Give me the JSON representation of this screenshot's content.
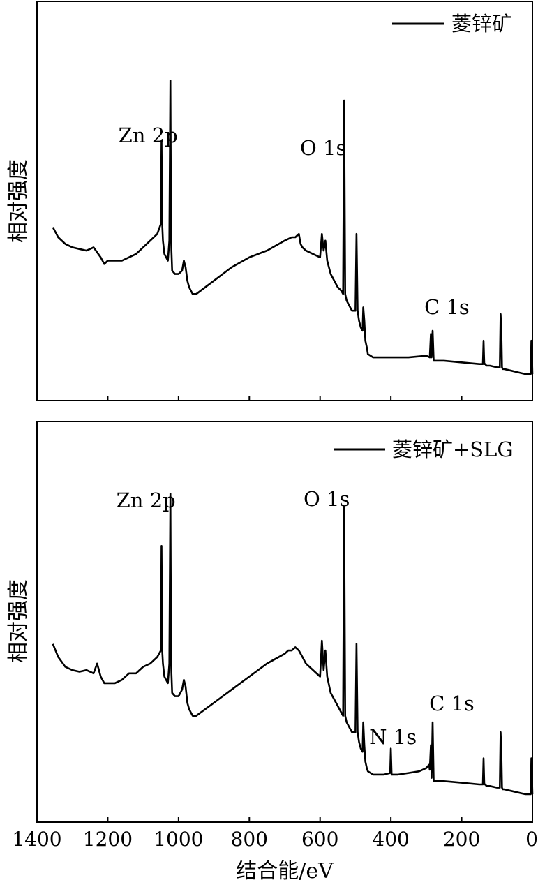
{
  "figure": {
    "xlabel": "结合能/eV",
    "x_ticks": [
      1400,
      1200,
      1000,
      800,
      600,
      400,
      200,
      0
    ]
  },
  "chart_data": [
    {
      "type": "line",
      "title": "",
      "xlabel": "",
      "ylabel": "相对强度",
      "xlim": [
        1400,
        0
      ],
      "x_reversed": true,
      "y_ticks_shown": false,
      "legend": "top-right",
      "series": [
        {
          "name": "菱锌矿",
          "x": [
            1355,
            1340,
            1320,
            1300,
            1280,
            1260,
            1240,
            1220,
            1210,
            1200,
            1180,
            1160,
            1140,
            1120,
            1100,
            1080,
            1060,
            1050,
            1048,
            1046,
            1044,
            1040,
            1030,
            1026,
            1023,
            1021,
            1018,
            1010,
            1000,
            990,
            985,
            980,
            975,
            970,
            960,
            950,
            900,
            850,
            800,
            750,
            700,
            680,
            670,
            660,
            655,
            650,
            640,
            620,
            600,
            595,
            590,
            585,
            580,
            570,
            560,
            550,
            540,
            535,
            532,
            529,
            525,
            520,
            510,
            500,
            497,
            494,
            490,
            485,
            480,
            478,
            475,
            472,
            468,
            465,
            450,
            400,
            350,
            300,
            290,
            287,
            285,
            282,
            279,
            275,
            270,
            250,
            200,
            150,
            140,
            138,
            136,
            133,
            130,
            120,
            100,
            92,
            90,
            88,
            86,
            84,
            80,
            60,
            40,
            20,
            10,
            5,
            3,
            1,
            0
          ],
          "y": [
            44,
            41,
            39,
            38,
            37.5,
            37,
            38,
            35,
            33,
            34,
            34,
            34,
            35,
            36,
            38,
            40,
            42,
            45,
            70,
            45,
            40,
            36,
            34,
            40,
            88,
            40,
            31,
            30,
            30,
            31,
            34,
            32,
            28,
            26,
            24,
            24,
            28,
            32,
            35,
            37,
            40,
            41,
            41,
            42,
            39,
            38,
            37,
            36,
            35,
            42,
            37,
            40,
            34,
            30,
            28,
            26,
            25,
            24,
            82,
            24,
            22,
            21,
            19,
            19,
            42,
            19,
            16,
            14,
            13,
            20,
            16,
            10,
            8,
            6,
            5,
            5,
            5,
            5.5,
            5,
            12,
            5,
            13,
            4,
            4,
            4,
            4,
            3.5,
            3,
            3,
            10,
            3,
            3,
            2.5,
            2.5,
            2,
            2,
            18,
            14,
            2,
            1.5,
            1.5,
            1,
            0.5,
            0,
            0,
            0,
            10,
            4,
            0
          ]
        }
      ],
      "annotations": [
        {
          "text": "Zn 2p",
          "x": 1023
        },
        {
          "text": "O 1s",
          "x": 532
        },
        {
          "text": "C 1s",
          "x": 285
        }
      ]
    },
    {
      "type": "line",
      "title": "",
      "xlabel": "结合能/eV",
      "ylabel": "相对强度",
      "xlim": [
        1400,
        0
      ],
      "x_reversed": true,
      "y_ticks_shown": false,
      "legend": "top-right",
      "series": [
        {
          "name": "菱锌矿+SLG",
          "x": [
            1355,
            1340,
            1320,
            1300,
            1280,
            1260,
            1240,
            1230,
            1220,
            1210,
            1200,
            1180,
            1160,
            1140,
            1120,
            1100,
            1080,
            1060,
            1050,
            1048,
            1046,
            1044,
            1040,
            1030,
            1026,
            1023,
            1021,
            1018,
            1010,
            1000,
            990,
            985,
            980,
            975,
            970,
            960,
            950,
            900,
            850,
            800,
            750,
            700,
            690,
            680,
            670,
            660,
            650,
            640,
            620,
            600,
            595,
            590,
            585,
            580,
            570,
            560,
            550,
            540,
            535,
            532,
            529,
            525,
            520,
            510,
            500,
            497,
            494,
            490,
            485,
            480,
            478,
            475,
            472,
            468,
            465,
            450,
            420,
            402,
            400,
            398,
            380,
            350,
            320,
            300,
            292,
            290,
            287,
            285,
            282,
            279,
            275,
            270,
            250,
            200,
            150,
            140,
            138,
            136,
            133,
            130,
            120,
            100,
            92,
            90,
            88,
            86,
            84,
            80,
            60,
            40,
            20,
            10,
            5,
            3,
            1,
            0
          ],
          "y": [
            46,
            42,
            39,
            38,
            37.5,
            38,
            37,
            40,
            36,
            34,
            34,
            34,
            35,
            37,
            37,
            39,
            40,
            42,
            44,
            76,
            44,
            40,
            36,
            34,
            40,
            92,
            40,
            31,
            30,
            30,
            32,
            35,
            33,
            28,
            26,
            24,
            24,
            28,
            32,
            36,
            40,
            43,
            44,
            44,
            45,
            44,
            42,
            40,
            38,
            36,
            47,
            38,
            44,
            36,
            31,
            29,
            27,
            25,
            24,
            88,
            24,
            22,
            21,
            19,
            19,
            46,
            19,
            16,
            14,
            13,
            22,
            15,
            10,
            8,
            7,
            6,
            6,
            6.5,
            14,
            6,
            6,
            6.5,
            7,
            8,
            9,
            7.5,
            15,
            5,
            22,
            4,
            4,
            4,
            4,
            3.5,
            3,
            3,
            11,
            3,
            3,
            2.5,
            2.5,
            2,
            2,
            19,
            14,
            2,
            1.5,
            1.5,
            1,
            0.5,
            0,
            0,
            0,
            11,
            4,
            0
          ]
        }
      ],
      "annotations": [
        {
          "text": "Zn 2p",
          "x": 1023
        },
        {
          "text": "O 1s",
          "x": 532
        },
        {
          "text": "N 1s",
          "x": 400
        },
        {
          "text": "C 1s",
          "x": 285
        }
      ]
    }
  ]
}
